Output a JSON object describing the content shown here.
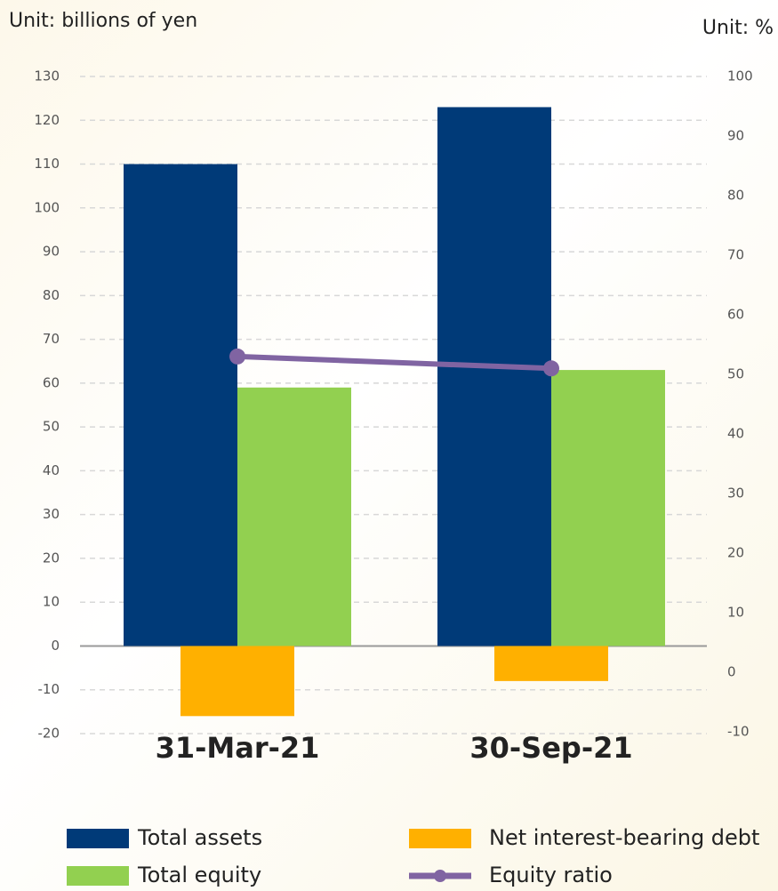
{
  "chart_data": {
    "type": "bar",
    "y_unit_label": "Unit: billions of yen",
    "y2_unit_label": "Unit: %",
    "categories": [
      "31-Mar-21",
      "30-Sep-21"
    ],
    "series": [
      {
        "name": "Total assets",
        "color": "#003a78",
        "values": [
          110,
          123
        ]
      },
      {
        "name": "Total equity",
        "color": "#92d050",
        "values": [
          59,
          63
        ]
      },
      {
        "name": "Net interest-bearing debt",
        "color": "#ffb000",
        "values": [
          -16,
          -8
        ]
      },
      {
        "name": "Equity ratio",
        "color": "#8064a2",
        "type": "line",
        "axis": "y2",
        "values": [
          53,
          51
        ]
      }
    ],
    "ylim": [
      -20,
      130
    ],
    "yticks": [
      -20,
      -10,
      0,
      10,
      20,
      30,
      40,
      50,
      60,
      70,
      80,
      90,
      100,
      110,
      120,
      130
    ],
    "y2lim": [
      -10,
      100
    ],
    "y2ticks": [
      -10,
      0,
      10,
      20,
      30,
      40,
      50,
      60,
      70,
      80,
      90,
      100
    ],
    "grid": true
  }
}
